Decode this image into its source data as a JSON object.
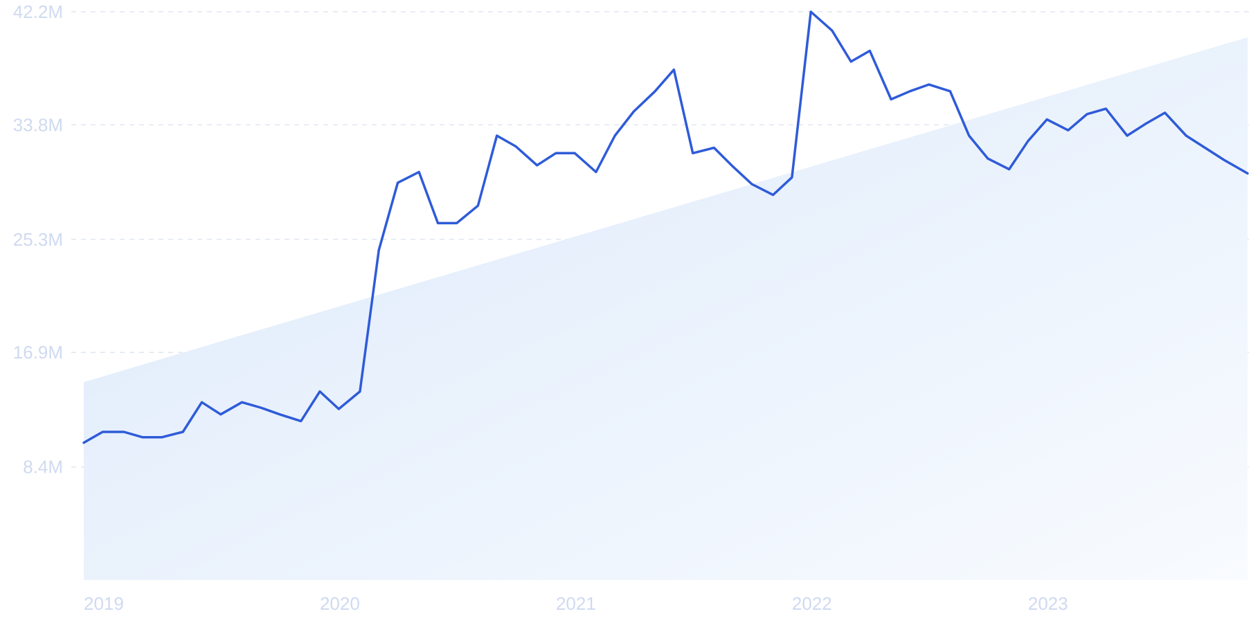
{
  "colors": {
    "line": "#2f5bd8",
    "trend_fill_start": "#dce9fa",
    "trend_fill_end": "#f8fbff",
    "grid": "#dfe6f2",
    "tick_text": "#cfdaf0"
  },
  "chart_data": {
    "type": "line",
    "title": "",
    "xlabel": "",
    "ylabel": "",
    "grid": true,
    "legend": "none",
    "ylim": [
      0,
      42.2
    ],
    "xlim": [
      2019.0,
      2023.93
    ],
    "y_ticks": [
      {
        "value": 8.4,
        "label": "8.4M"
      },
      {
        "value": 16.9,
        "label": "16.9M"
      },
      {
        "value": 25.3,
        "label": "25.3M"
      },
      {
        "value": 33.8,
        "label": "33.8M"
      },
      {
        "value": 42.2,
        "label": "42.2M"
      }
    ],
    "x_ticks": [
      {
        "value": 2019,
        "label": "2019"
      },
      {
        "value": 2020,
        "label": "2020"
      },
      {
        "value": 2021,
        "label": "2021"
      },
      {
        "value": 2022,
        "label": "2022"
      },
      {
        "value": 2023,
        "label": "2023"
      }
    ],
    "series": [
      {
        "values": [
          [
            2019.0,
            10.2
          ],
          [
            2019.08,
            11.0
          ],
          [
            2019.17,
            11.0
          ],
          [
            2019.25,
            10.6
          ],
          [
            2019.33,
            10.6
          ],
          [
            2019.42,
            11.0
          ],
          [
            2019.5,
            13.2
          ],
          [
            2019.58,
            12.3
          ],
          [
            2019.67,
            13.2
          ],
          [
            2019.75,
            12.8
          ],
          [
            2019.83,
            12.3
          ],
          [
            2019.92,
            11.8
          ],
          [
            2020.0,
            14.0
          ],
          [
            2020.08,
            12.7
          ],
          [
            2020.17,
            14.0
          ],
          [
            2020.25,
            24.5
          ],
          [
            2020.33,
            29.5
          ],
          [
            2020.42,
            30.3
          ],
          [
            2020.5,
            26.5
          ],
          [
            2020.58,
            26.5
          ],
          [
            2020.67,
            27.8
          ],
          [
            2020.75,
            33.0
          ],
          [
            2020.83,
            32.2
          ],
          [
            2020.92,
            30.8
          ],
          [
            2021.0,
            31.7
          ],
          [
            2021.08,
            31.7
          ],
          [
            2021.17,
            30.3
          ],
          [
            2021.25,
            33.0
          ],
          [
            2021.33,
            34.8
          ],
          [
            2021.42,
            36.3
          ],
          [
            2021.5,
            37.9
          ],
          [
            2021.58,
            31.7
          ],
          [
            2021.67,
            32.1
          ],
          [
            2021.75,
            30.7
          ],
          [
            2021.83,
            29.4
          ],
          [
            2021.92,
            28.6
          ],
          [
            2022.0,
            29.9
          ],
          [
            2022.08,
            42.2
          ],
          [
            2022.17,
            40.8
          ],
          [
            2022.25,
            38.5
          ],
          [
            2022.33,
            39.3
          ],
          [
            2022.42,
            35.7
          ],
          [
            2022.5,
            36.3
          ],
          [
            2022.58,
            36.8
          ],
          [
            2022.67,
            36.3
          ],
          [
            2022.75,
            33.0
          ],
          [
            2022.83,
            31.3
          ],
          [
            2022.92,
            30.5
          ],
          [
            2023.0,
            32.6
          ],
          [
            2023.08,
            34.2
          ],
          [
            2023.17,
            33.4
          ],
          [
            2023.25,
            34.6
          ],
          [
            2023.33,
            35.0
          ],
          [
            2023.42,
            33.0
          ],
          [
            2023.5,
            33.9
          ],
          [
            2023.58,
            34.7
          ],
          [
            2023.67,
            33.0
          ],
          [
            2023.75,
            32.1
          ],
          [
            2023.83,
            31.2
          ],
          [
            2023.93,
            30.2
          ]
        ]
      }
    ],
    "trend": {
      "start": [
        2019.0,
        14.7
      ],
      "end": [
        2023.93,
        40.3
      ]
    }
  }
}
